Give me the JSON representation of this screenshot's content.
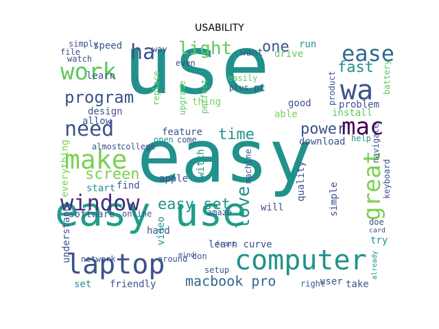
{
  "title": "USABILITY",
  "palette": {
    "teal": "#21918c",
    "green": "#5ec962",
    "lime": "#b5de2b",
    "yellow": "#fde725",
    "navy": "#3b528b",
    "purple": "#440154",
    "sea": "#1fa187",
    "bright": "#7ad151"
  },
  "words": [
    "use",
    "easy",
    "easy use",
    "computer",
    "laptop",
    "window",
    "make",
    "work",
    "need",
    "mac",
    "great",
    "ease",
    "program",
    "light",
    "fast",
    "screen",
    "time",
    "power",
    "wa",
    "ha",
    "one",
    "love",
    "macbook pro",
    "easy set",
    "want",
    "run",
    "drive",
    "pc",
    "install",
    "problem",
    "design",
    "feature",
    "download",
    "quality",
    "switch",
    "apple",
    "thing",
    "able",
    "good",
    "help",
    "navigate",
    "keyboard",
    "learn",
    "speed",
    "simply",
    "file",
    "watch",
    "allow",
    "everything",
    "almost",
    "college",
    "find",
    "start",
    "hard",
    "software",
    "online",
    "video",
    "understand",
    "network",
    "friendly",
    "take",
    "learn curve",
    "user",
    "right",
    "setup",
    "try",
    "doe",
    "simple",
    "will",
    "amaze",
    "product",
    "battery",
    "upgrade",
    "replace",
    "perfect",
    "even",
    "easily",
    "plus",
    "way",
    "open",
    "come",
    "machine",
    "front",
    "card",
    "already",
    "don",
    "around",
    "set",
    "mind"
  ]
}
